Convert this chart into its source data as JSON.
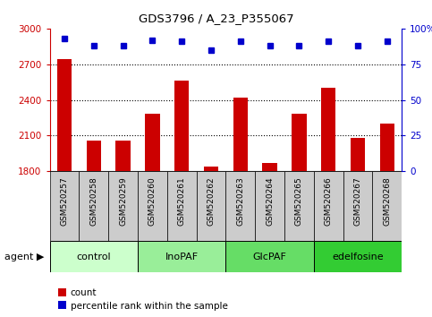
{
  "title": "GDS3796 / A_23_P355067",
  "samples": [
    "GSM520257",
    "GSM520258",
    "GSM520259",
    "GSM520260",
    "GSM520261",
    "GSM520262",
    "GSM520263",
    "GSM520264",
    "GSM520265",
    "GSM520266",
    "GSM520267",
    "GSM520268"
  ],
  "bar_values": [
    2740,
    2060,
    2060,
    2280,
    2560,
    1840,
    2420,
    1870,
    2280,
    2500,
    2080,
    2200
  ],
  "percentile_values": [
    93,
    88,
    88,
    92,
    91,
    85,
    91,
    88,
    88,
    91,
    88,
    91
  ],
  "bar_color": "#cc0000",
  "dot_color": "#0000cc",
  "ylim_left": [
    1800,
    3000
  ],
  "ylim_right": [
    0,
    100
  ],
  "yticks_left": [
    1800,
    2100,
    2400,
    2700,
    3000
  ],
  "yticks_right": [
    0,
    25,
    50,
    75,
    100
  ],
  "groups": [
    {
      "label": "control",
      "start": 0,
      "end": 3,
      "color": "#ccffcc"
    },
    {
      "label": "InoPAF",
      "start": 3,
      "end": 6,
      "color": "#99ee99"
    },
    {
      "label": "GlcPAF",
      "start": 6,
      "end": 9,
      "color": "#66dd66"
    },
    {
      "label": "edelfosine",
      "start": 9,
      "end": 12,
      "color": "#33cc33"
    }
  ],
  "xlabel_agent": "agent",
  "legend_count": "count",
  "legend_percentile": "percentile rank within the sample",
  "background_plot": "#ffffff",
  "xtick_bg": "#cccccc",
  "grid_linestyle": ":",
  "grid_color": "black",
  "grid_linewidth": 0.8
}
